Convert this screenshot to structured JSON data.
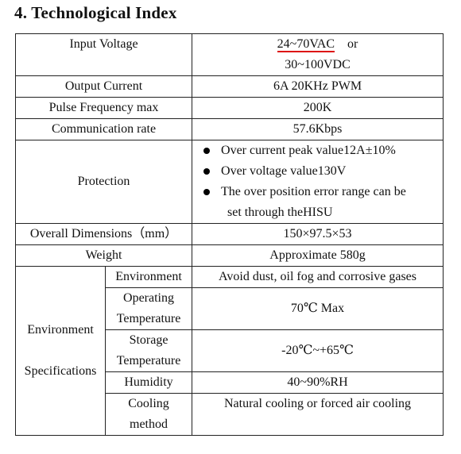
{
  "heading": "4. Technological Index",
  "rows": {
    "input_voltage": {
      "label": "Input Voltage",
      "value_1": "24~70VAC",
      "value_1_suffix": "or",
      "value_2": "30~100VDC"
    },
    "output_current": {
      "label": "Output Current",
      "value": "6A 20KHz PWM"
    },
    "pulse_freq": {
      "label": "Pulse Frequency max",
      "value": "200K"
    },
    "comm_rate": {
      "label": "Communication rate",
      "value": "57.6Kbps"
    },
    "protection": {
      "label": "Protection",
      "items": [
        "Over current peak value12A±10%",
        "Over voltage value130V",
        "The over position error range can be"
      ],
      "continuation": "set through theHISU"
    },
    "dimensions": {
      "label": "Overall Dimensions（mm）",
      "value": "150×97.5×53"
    },
    "weight": {
      "label": "Weight",
      "value": "Approximate 580g"
    },
    "environment": {
      "label_line1": "Environment",
      "label_line2": "Specifications",
      "environment": {
        "label": "Environment",
        "value": "Avoid dust, oil fog and corrosive gases"
      },
      "operating_temp": {
        "label_line1": "Operating",
        "label_line2": "Temperature",
        "value": "70℃ Max"
      },
      "storage_temp": {
        "label_line1": "Storage",
        "label_line2": "Temperature",
        "value": "-20℃~+65℃"
      },
      "humidity": {
        "label": "Humidity",
        "value": "40~90%RH"
      },
      "cooling": {
        "label_line1": "Cooling",
        "label_line2": "method",
        "value": "Natural cooling or forced air cooling"
      }
    }
  },
  "colors": {
    "underline": "#dd1111"
  }
}
